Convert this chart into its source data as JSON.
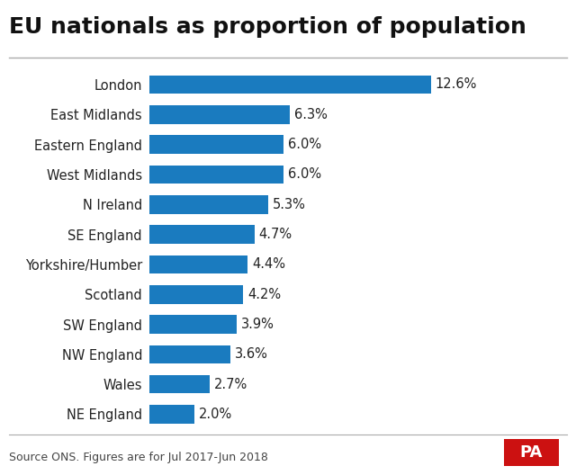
{
  "title": "EU nationals as proportion of population",
  "categories": [
    "NE England",
    "Wales",
    "NW England",
    "SW England",
    "Scotland",
    "Yorkshire/Humber",
    "SE England",
    "N Ireland",
    "West Midlands",
    "Eastern England",
    "East Midlands",
    "London"
  ],
  "values": [
    2.0,
    2.7,
    3.6,
    3.9,
    4.2,
    4.4,
    4.7,
    5.3,
    6.0,
    6.0,
    6.3,
    12.6
  ],
  "labels": [
    "2.0%",
    "2.7%",
    "3.6%",
    "3.9%",
    "4.2%",
    "4.4%",
    "4.7%",
    "5.3%",
    "6.0%",
    "6.0%",
    "6.3%",
    "12.6%"
  ],
  "bar_color": "#1a7bbf",
  "background_color": "#ffffff",
  "title_fontsize": 18,
  "label_fontsize": 10.5,
  "value_fontsize": 10.5,
  "source_text": "Source ONS. Figures are for Jul 2017-Jun 2018",
  "source_fontsize": 9,
  "pa_bg_color": "#cc1111",
  "pa_text_color": "#ffffff"
}
